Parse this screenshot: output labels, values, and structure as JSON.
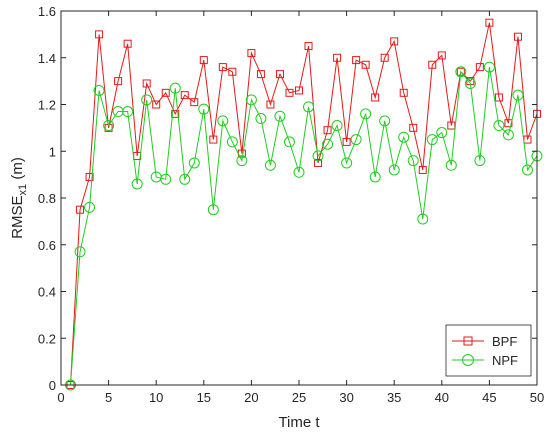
{
  "chart_data": {
    "type": "line",
    "xlabel": "Time t",
    "ylabel_main": "RMSE",
    "ylabel_sub": "x1",
    "ylabel_unit": " (m)",
    "xlim": [
      0,
      50
    ],
    "ylim": [
      0,
      1.6
    ],
    "xticks": [
      0,
      5,
      10,
      15,
      20,
      25,
      30,
      35,
      40,
      45,
      50
    ],
    "yticks": [
      0,
      0.2,
      0.4,
      0.6,
      0.8,
      1,
      1.2,
      1.4,
      1.6
    ],
    "xtick_labels": [
      "0",
      "5",
      "10",
      "15",
      "20",
      "25",
      "30",
      "35",
      "40",
      "45",
      "50"
    ],
    "ytick_labels": [
      "0",
      "0.2",
      "0.4",
      "0.6",
      "0.8",
      "1",
      "1.2",
      "1.4",
      "1.6"
    ],
    "grid": false,
    "legend_position": "bottom-right",
    "x": [
      1,
      2,
      3,
      4,
      5,
      6,
      7,
      8,
      9,
      10,
      11,
      12,
      13,
      14,
      15,
      16,
      17,
      18,
      19,
      20,
      21,
      22,
      23,
      24,
      25,
      26,
      27,
      28,
      29,
      30,
      31,
      32,
      33,
      34,
      35,
      36,
      37,
      38,
      39,
      40,
      41,
      42,
      43,
      44,
      45,
      46,
      47,
      48,
      49,
      50
    ],
    "series": [
      {
        "name": "BPF",
        "color": "#e51a1a",
        "marker": "square",
        "values": [
          0,
          0.75,
          0.89,
          1.5,
          1.1,
          1.3,
          1.46,
          0.98,
          1.29,
          1.2,
          1.25,
          1.16,
          1.24,
          1.21,
          1.39,
          1.05,
          1.36,
          1.34,
          0.99,
          1.42,
          1.33,
          1.2,
          1.33,
          1.25,
          1.26,
          1.45,
          0.95,
          1.09,
          1.4,
          1.04,
          1.39,
          1.37,
          1.23,
          1.4,
          1.47,
          1.25,
          1.1,
          0.92,
          1.37,
          1.41,
          1.11,
          1.34,
          1.3,
          1.36,
          1.55,
          1.23,
          1.12,
          1.49,
          1.05,
          1.16
        ]
      },
      {
        "name": "NPF",
        "color": "#22cc22",
        "marker": "circle",
        "values": [
          0,
          0.57,
          0.76,
          1.26,
          1.11,
          1.17,
          1.17,
          0.86,
          1.22,
          0.89,
          0.88,
          1.27,
          0.88,
          0.95,
          1.18,
          0.75,
          1.13,
          1.04,
          0.96,
          1.22,
          1.14,
          0.94,
          1.15,
          1.04,
          0.91,
          1.19,
          0.98,
          1.03,
          1.11,
          0.95,
          1.05,
          1.16,
          0.89,
          1.13,
          0.92,
          1.06,
          0.96,
          0.71,
          1.05,
          1.08,
          0.94,
          1.34,
          1.29,
          0.96,
          1.36,
          1.11,
          1.07,
          1.24,
          0.92,
          0.98
        ]
      }
    ]
  }
}
